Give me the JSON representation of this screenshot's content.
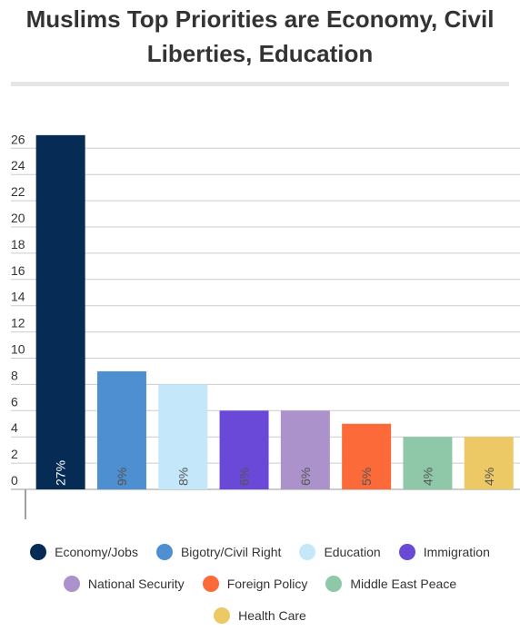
{
  "page": {
    "title": "Muslims Top Priorities are Economy, Civil Liberties, Education"
  },
  "chart_data": {
    "type": "bar",
    "title": "Muslims Top Priorities are Economy, Civil Liberties, Education",
    "xlabel": "",
    "ylabel": "",
    "ylim": [
      0,
      26
    ],
    "yticks": [
      0,
      2,
      4,
      6,
      8,
      10,
      12,
      14,
      16,
      18,
      20,
      22,
      24,
      26
    ],
    "grid": true,
    "legend_position": "bottom",
    "categories": [
      "Economy/Jobs",
      "Bigotry/Civil Right",
      "Education",
      "Immigration",
      "National Security",
      "Foreign Policy",
      "Middle East Peace",
      "Health Care"
    ],
    "values": [
      27,
      9,
      8,
      6,
      6,
      5,
      4,
      4
    ],
    "data_labels": [
      "27%",
      "9%",
      "8%",
      "6%",
      "6%",
      "5%",
      "4%",
      "4%"
    ],
    "colors": [
      "#062c56",
      "#4d8fd1",
      "#c5e7fa",
      "#6a48d8",
      "#ab92ca",
      "#fc6a3a",
      "#8fc7a9",
      "#edc965"
    ]
  }
}
